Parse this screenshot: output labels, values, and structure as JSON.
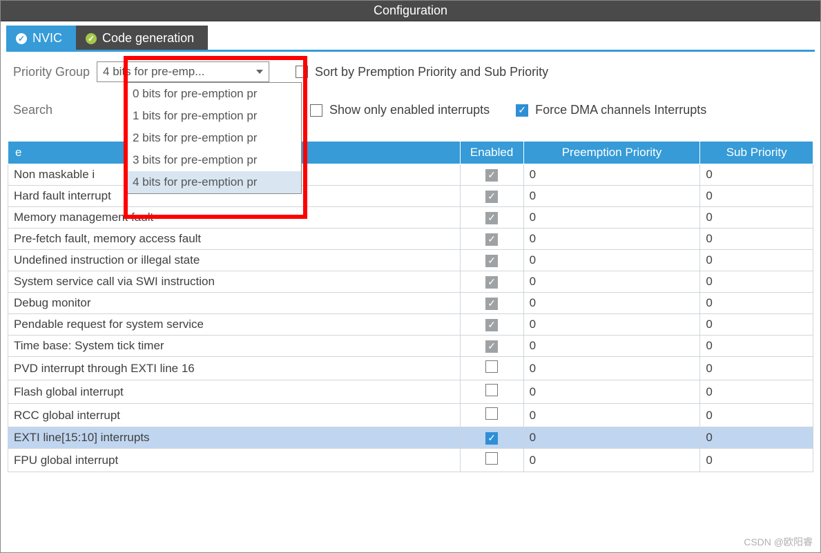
{
  "window": {
    "title": "Configuration"
  },
  "tabs": {
    "nvic": "NVIC",
    "codegen": "Code generation"
  },
  "controls": {
    "priority_group_label": "Priority Group",
    "priority_group_selected": "4 bits for pre-emp...",
    "priority_group_options": [
      "0 bits for pre-emption pr",
      "1 bits for pre-emption pr",
      "2 bits for pre-emption pr",
      "3 bits for pre-emption pr",
      "4 bits for pre-emption pr"
    ],
    "priority_group_selected_index": 4,
    "search_label": "Search",
    "sort_label": "Sort by Premption Priority and Sub Priority",
    "sort_checked": false,
    "show_enabled_label": "Show only enabled interrupts",
    "show_enabled_checked": false,
    "force_dma_label": "Force DMA channels Interrupts",
    "force_dma_checked": true
  },
  "table": {
    "headers": {
      "name": "e",
      "enabled": "Enabled",
      "preemption": "Preemption Priority",
      "sub": "Sub Priority"
    },
    "rows": [
      {
        "name": "Non maskable i",
        "enabled": "gray",
        "pre": "0",
        "sub": "0",
        "selected": false
      },
      {
        "name": "Hard fault interrupt",
        "enabled": "gray",
        "pre": "0",
        "sub": "0",
        "selected": false
      },
      {
        "name": "Memory management fault",
        "enabled": "gray",
        "pre": "0",
        "sub": "0",
        "selected": false
      },
      {
        "name": "Pre-fetch fault, memory access fault",
        "enabled": "gray",
        "pre": "0",
        "sub": "0",
        "selected": false
      },
      {
        "name": "Undefined instruction or illegal state",
        "enabled": "gray",
        "pre": "0",
        "sub": "0",
        "selected": false
      },
      {
        "name": "System service call via SWI instruction",
        "enabled": "gray",
        "pre": "0",
        "sub": "0",
        "selected": false
      },
      {
        "name": "Debug monitor",
        "enabled": "gray",
        "pre": "0",
        "sub": "0",
        "selected": false
      },
      {
        "name": "Pendable request for system service",
        "enabled": "gray",
        "pre": "0",
        "sub": "0",
        "selected": false
      },
      {
        "name": "Time base: System tick timer",
        "enabled": "gray",
        "pre": "0",
        "sub": "0",
        "selected": false
      },
      {
        "name": "PVD interrupt through EXTI line 16",
        "enabled": "none",
        "pre": "0",
        "sub": "0",
        "selected": false
      },
      {
        "name": "Flash global interrupt",
        "enabled": "none",
        "pre": "0",
        "sub": "0",
        "selected": false
      },
      {
        "name": "RCC global interrupt",
        "enabled": "none",
        "pre": "0",
        "sub": "0",
        "selected": false
      },
      {
        "name": "EXTI line[15:10] interrupts",
        "enabled": "blue",
        "pre": "0",
        "sub": "0",
        "selected": true
      },
      {
        "name": "FPU global interrupt",
        "enabled": "none",
        "pre": "0",
        "sub": "0",
        "selected": false
      }
    ]
  },
  "watermark": "CSDN @欧阳睿",
  "colors": {
    "header_bg": "#4a4a4a",
    "accent": "#369bd7",
    "checkbox_blue": "#2f8fd6",
    "checkbox_gray": "#9fa2a5",
    "row_selected": "#c0d5ef",
    "highlight_border": "#ff0000"
  }
}
